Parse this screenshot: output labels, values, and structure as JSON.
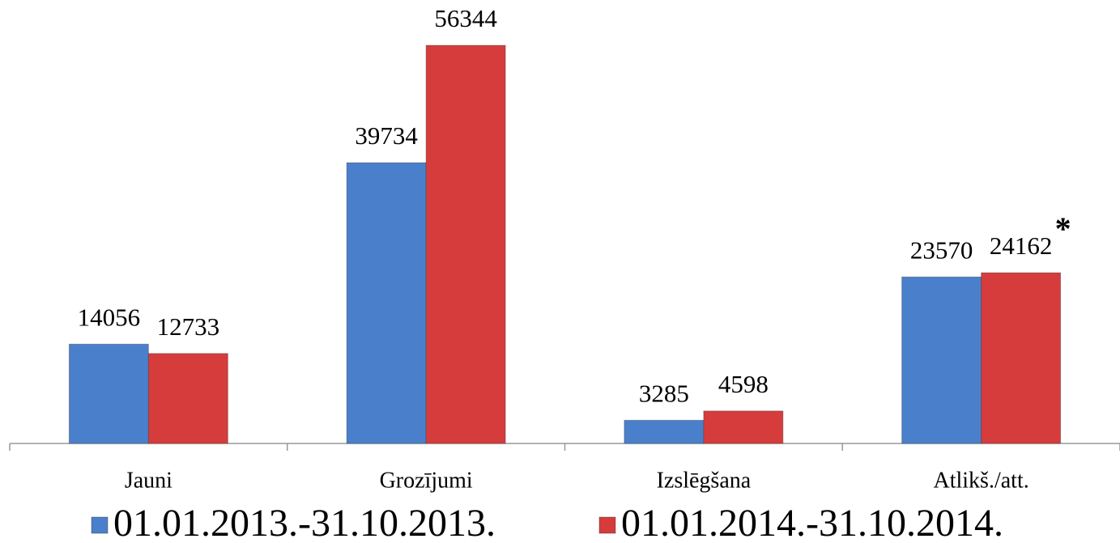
{
  "chart_data": {
    "type": "bar",
    "categories": [
      "Jauni",
      "Grozījumi",
      "Izslēgšana",
      "Atlikš./att."
    ],
    "series": [
      {
        "name": "01.01.2013.-31.10.2013.",
        "color": "#4a7fcb",
        "values": [
          14056,
          39734,
          3285,
          23570
        ]
      },
      {
        "name": "01.01.2014.-31.10.2014.",
        "color": "#d63c3c",
        "values": [
          12733,
          56344,
          4598,
          24162
        ]
      }
    ],
    "annotation": "*",
    "legend": "bottom"
  }
}
